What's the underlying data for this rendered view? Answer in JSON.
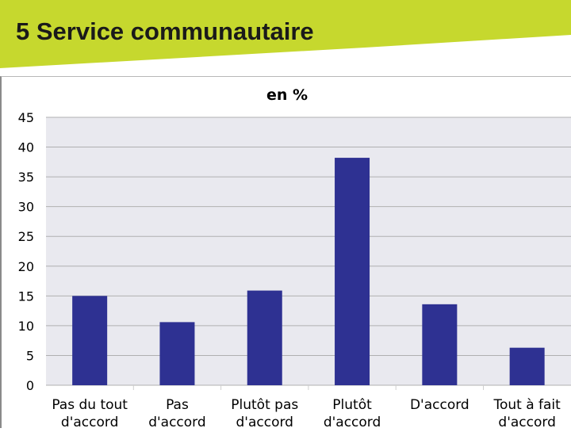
{
  "slide": {
    "title": "5 Service communautaire"
  },
  "colors": {
    "banner": "#c6d82e",
    "bar": "#2e3192",
    "plot_bg": "#e9e9ef",
    "grid": "#b0b0b0"
  },
  "chart_data": {
    "type": "bar",
    "title": "en %",
    "categories": [
      [
        "Pas du tout",
        "d'accord"
      ],
      [
        "Pas",
        "d'accord"
      ],
      [
        "Plutôt pas",
        "d'accord"
      ],
      [
        "Plutôt",
        "d'accord"
      ],
      [
        "D'accord"
      ],
      [
        "Tout à fait",
        "d'accord"
      ]
    ],
    "values": [
      15.0,
      10.6,
      15.9,
      38.2,
      13.6,
      6.3
    ],
    "yticks": [
      0,
      5,
      10,
      15,
      20,
      25,
      30,
      35,
      40,
      45
    ],
    "ylim": [
      0,
      45
    ],
    "grid": true,
    "legend": false
  }
}
